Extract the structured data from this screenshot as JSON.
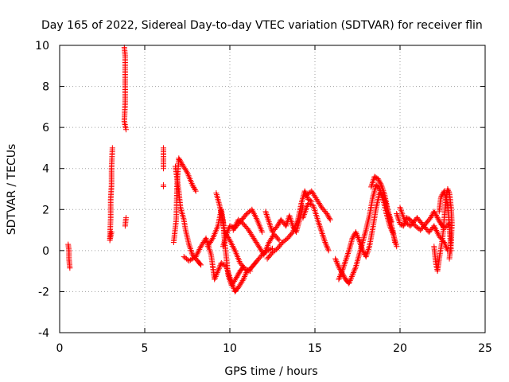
{
  "chart_data": {
    "type": "scatter",
    "title": "Day 165 of 2022, Sidereal Day-to-day VTEC variation (SDTVAR) for receiver flin",
    "xlabel": "GPS time / hours",
    "ylabel": "SDTVAR / TECUs",
    "xlim": [
      0,
      25
    ],
    "ylim": [
      -4,
      10
    ],
    "x_ticks": [
      0,
      5,
      10,
      15,
      20,
      25
    ],
    "x_tick_labels": [
      "0",
      "5",
      "10",
      "15",
      "20",
      "25"
    ],
    "y_ticks": [
      -4,
      -2,
      0,
      2,
      4,
      6,
      8,
      10
    ],
    "y_tick_labels": [
      "-4",
      "-2",
      "0",
      "2",
      "4",
      "6",
      "8",
      "10"
    ],
    "grid": true,
    "marker": "plus",
    "colors": {
      "series": "#ff0000",
      "axis": "#000000",
      "grid": "#a0a0a0"
    },
    "series": [
      {
        "name": "SDTVAR",
        "segments": [
          [
            [
              0.5,
              0.3
            ],
            [
              0.55,
              0.0
            ],
            [
              0.55,
              -0.4
            ],
            [
              0.6,
              -0.85
            ]
          ],
          [
            [
              2.95,
              0.6
            ],
            [
              3.0,
              1.6
            ],
            [
              3.0,
              2.5
            ],
            [
              3.05,
              3.2
            ],
            [
              3.05,
              4.0
            ],
            [
              3.1,
              5.0
            ]
          ],
          [
            [
              2.95,
              0.5
            ],
            [
              3.05,
              0.9
            ]
          ],
          [
            [
              3.8,
              9.9
            ],
            [
              3.85,
              9.5
            ],
            [
              3.85,
              8.5
            ],
            [
              3.85,
              7.2
            ],
            [
              3.8,
              6.3
            ],
            [
              3.9,
              5.9
            ]
          ],
          [
            [
              3.85,
              1.2
            ],
            [
              3.9,
              1.6
            ]
          ],
          [
            [
              6.1,
              5.0
            ],
            [
              6.1,
              4.0
            ]
          ],
          [
            [
              6.1,
              3.2
            ]
          ],
          [
            [
              6.7,
              0.4
            ],
            [
              6.85,
              1.5
            ],
            [
              6.9,
              3.2
            ],
            [
              7.0,
              4.5
            ],
            [
              7.2,
              4.2
            ],
            [
              7.5,
              3.8
            ],
            [
              7.8,
              3.2
            ],
            [
              8.0,
              2.9
            ]
          ],
          [
            [
              6.8,
              4.1
            ],
            [
              7.0,
              2.9
            ],
            [
              7.1,
              2.1
            ],
            [
              7.3,
              1.5
            ],
            [
              7.4,
              1.0
            ],
            [
              7.6,
              0.3
            ],
            [
              7.8,
              -0.2
            ],
            [
              8.1,
              -0.5
            ],
            [
              8.3,
              -0.7
            ]
          ],
          [
            [
              7.3,
              -0.3
            ],
            [
              7.6,
              -0.5
            ],
            [
              8.0,
              -0.3
            ],
            [
              8.3,
              0.2
            ],
            [
              8.6,
              0.6
            ],
            [
              8.9,
              -0.2
            ],
            [
              9.1,
              -1.4
            ],
            [
              9.3,
              -1.0
            ],
            [
              9.5,
              -0.6
            ],
            [
              9.8,
              -0.8
            ],
            [
              10.0,
              -1.3
            ],
            [
              10.3,
              -2.0
            ],
            [
              10.5,
              -1.8
            ],
            [
              10.8,
              -1.4
            ],
            [
              11.0,
              -1.0
            ],
            [
              11.2,
              -0.9
            ],
            [
              11.4,
              -0.7
            ],
            [
              11.6,
              -0.5
            ],
            [
              11.9,
              -0.2
            ],
            [
              12.2,
              0.0
            ],
            [
              12.5,
              0.1
            ]
          ],
          [
            [
              8.7,
              0.2
            ],
            [
              9.0,
              0.6
            ],
            [
              9.3,
              1.2
            ],
            [
              9.5,
              2.0
            ],
            [
              9.7,
              0.9
            ],
            [
              10.0,
              0.5
            ],
            [
              10.3,
              0.0
            ],
            [
              10.6,
              -0.6
            ],
            [
              10.9,
              -0.9
            ],
            [
              11.2,
              -1.0
            ]
          ],
          [
            [
              9.2,
              2.8
            ],
            [
              9.4,
              2.2
            ],
            [
              9.6,
              1.4
            ],
            [
              9.7,
              0.4
            ],
            [
              9.8,
              -0.4
            ],
            [
              9.9,
              -1.2
            ],
            [
              10.1,
              -1.7
            ],
            [
              10.4,
              -1.3
            ],
            [
              10.6,
              -1.0
            ],
            [
              10.8,
              -0.8
            ]
          ],
          [
            [
              9.6,
              0.2
            ],
            [
              9.8,
              0.8
            ],
            [
              10.0,
              1.2
            ],
            [
              10.3,
              1.1
            ],
            [
              10.6,
              1.4
            ],
            [
              11.0,
              1.8
            ],
            [
              11.3,
              2.0
            ],
            [
              11.6,
              1.5
            ],
            [
              11.9,
              0.9
            ]
          ],
          [
            [
              10.2,
              1.0
            ],
            [
              10.5,
              1.5
            ],
            [
              10.8,
              1.3
            ],
            [
              11.1,
              1.0
            ],
            [
              11.4,
              0.6
            ],
            [
              11.7,
              0.2
            ],
            [
              12.0,
              -0.2
            ],
            [
              12.3,
              0.4
            ],
            [
              12.6,
              0.8
            ],
            [
              12.9,
              0.5
            ]
          ],
          [
            [
              12.1,
              1.9
            ],
            [
              12.3,
              1.4
            ],
            [
              12.5,
              0.9
            ],
            [
              12.8,
              1.2
            ],
            [
              13.0,
              1.5
            ],
            [
              13.3,
              1.2
            ],
            [
              13.5,
              1.7
            ],
            [
              13.7,
              1.2
            ],
            [
              13.9,
              0.9
            ],
            [
              14.1,
              1.5
            ],
            [
              14.3,
              2.2
            ]
          ],
          [
            [
              12.2,
              -0.4
            ],
            [
              12.5,
              -0.1
            ],
            [
              12.8,
              0.1
            ],
            [
              13.1,
              0.4
            ],
            [
              13.4,
              0.6
            ],
            [
              13.7,
              0.9
            ],
            [
              14.0,
              1.5
            ],
            [
              14.2,
              2.3
            ],
            [
              14.4,
              2.9
            ],
            [
              14.6,
              2.5
            ],
            [
              14.8,
              2.4
            ]
          ],
          [
            [
              14.3,
              1.6
            ],
            [
              14.6,
              2.3
            ],
            [
              14.9,
              2.2
            ],
            [
              15.2,
              1.4
            ],
            [
              15.4,
              0.9
            ],
            [
              15.6,
              0.4
            ],
            [
              15.8,
              0.0
            ]
          ],
          [
            [
              14.5,
              2.7
            ],
            [
              14.8,
              2.9
            ],
            [
              15.1,
              2.5
            ],
            [
              15.4,
              2.1
            ],
            [
              15.7,
              1.8
            ],
            [
              15.9,
              1.5
            ]
          ],
          [
            [
              16.2,
              -0.4
            ],
            [
              16.4,
              -0.8
            ],
            [
              16.6,
              -1.1
            ],
            [
              16.8,
              -1.4
            ],
            [
              17.0,
              -1.6
            ],
            [
              17.2,
              -1.2
            ],
            [
              17.4,
              -0.8
            ],
            [
              17.6,
              -0.2
            ],
            [
              17.8,
              0.4
            ],
            [
              18.0,
              1.0
            ],
            [
              18.2,
              1.7
            ],
            [
              18.4,
              2.6
            ],
            [
              18.6,
              3.2
            ],
            [
              18.8,
              3.0
            ],
            [
              19.0,
              2.5
            ],
            [
              19.2,
              1.8
            ],
            [
              19.4,
              1.2
            ],
            [
              19.6,
              0.8
            ],
            [
              19.8,
              0.2
            ]
          ],
          [
            [
              16.4,
              -1.4
            ],
            [
              16.6,
              -1.0
            ],
            [
              16.8,
              -0.5
            ],
            [
              17.0,
              0.0
            ],
            [
              17.2,
              0.6
            ],
            [
              17.4,
              0.9
            ],
            [
              17.6,
              0.5
            ],
            [
              17.8,
              0.0
            ],
            [
              18.0,
              -0.3
            ],
            [
              18.2,
              0.2
            ],
            [
              18.4,
              1.1
            ],
            [
              18.6,
              2.1
            ],
            [
              18.8,
              2.8
            ],
            [
              19.0,
              2.7
            ],
            [
              19.2,
              2.2
            ],
            [
              19.4,
              1.5
            ],
            [
              19.6,
              0.9
            ],
            [
              19.7,
              0.4
            ]
          ],
          [
            [
              18.3,
              3.1
            ],
            [
              18.5,
              3.6
            ],
            [
              18.7,
              3.5
            ],
            [
              18.9,
              3.2
            ],
            [
              19.1,
              2.7
            ],
            [
              19.3,
              1.9
            ],
            [
              19.5,
              1.4
            ]
          ],
          [
            [
              19.8,
              1.8
            ],
            [
              20.0,
              1.3
            ],
            [
              20.2,
              1.2
            ],
            [
              20.4,
              1.6
            ],
            [
              20.6,
              1.5
            ],
            [
              20.9,
              1.2
            ],
            [
              21.2,
              1.0
            ],
            [
              21.5,
              1.3
            ],
            [
              21.8,
              1.6
            ],
            [
              22.0,
              1.9
            ],
            [
              22.2,
              1.6
            ],
            [
              22.4,
              1.3
            ],
            [
              22.6,
              1.1
            ],
            [
              22.9,
              1.3
            ]
          ],
          [
            [
              20.0,
              2.1
            ],
            [
              20.3,
              1.4
            ],
            [
              20.6,
              1.2
            ],
            [
              21.0,
              1.6
            ],
            [
              21.4,
              1.2
            ],
            [
              21.7,
              0.9
            ],
            [
              22.0,
              1.2
            ],
            [
              22.3,
              0.7
            ],
            [
              22.6,
              0.4
            ],
            [
              22.8,
              0.0
            ]
          ],
          [
            [
              22.0,
              0.2
            ],
            [
              22.1,
              -0.6
            ],
            [
              22.2,
              -1.0
            ],
            [
              22.3,
              -0.4
            ],
            [
              22.5,
              0.6
            ],
            [
              22.6,
              1.6
            ],
            [
              22.7,
              2.5
            ],
            [
              22.8,
              3.0
            ],
            [
              22.9,
              2.8
            ],
            [
              23.0,
              2.1
            ],
            [
              23.05,
              1.3
            ],
            [
              23.0,
              0.4
            ],
            [
              22.9,
              -0.4
            ]
          ],
          [
            [
              22.3,
              1.9
            ],
            [
              22.4,
              2.6
            ],
            [
              22.6,
              2.9
            ],
            [
              22.8,
              2.2
            ],
            [
              22.9,
              1.1
            ],
            [
              23.0,
              0.0
            ]
          ]
        ]
      }
    ]
  }
}
